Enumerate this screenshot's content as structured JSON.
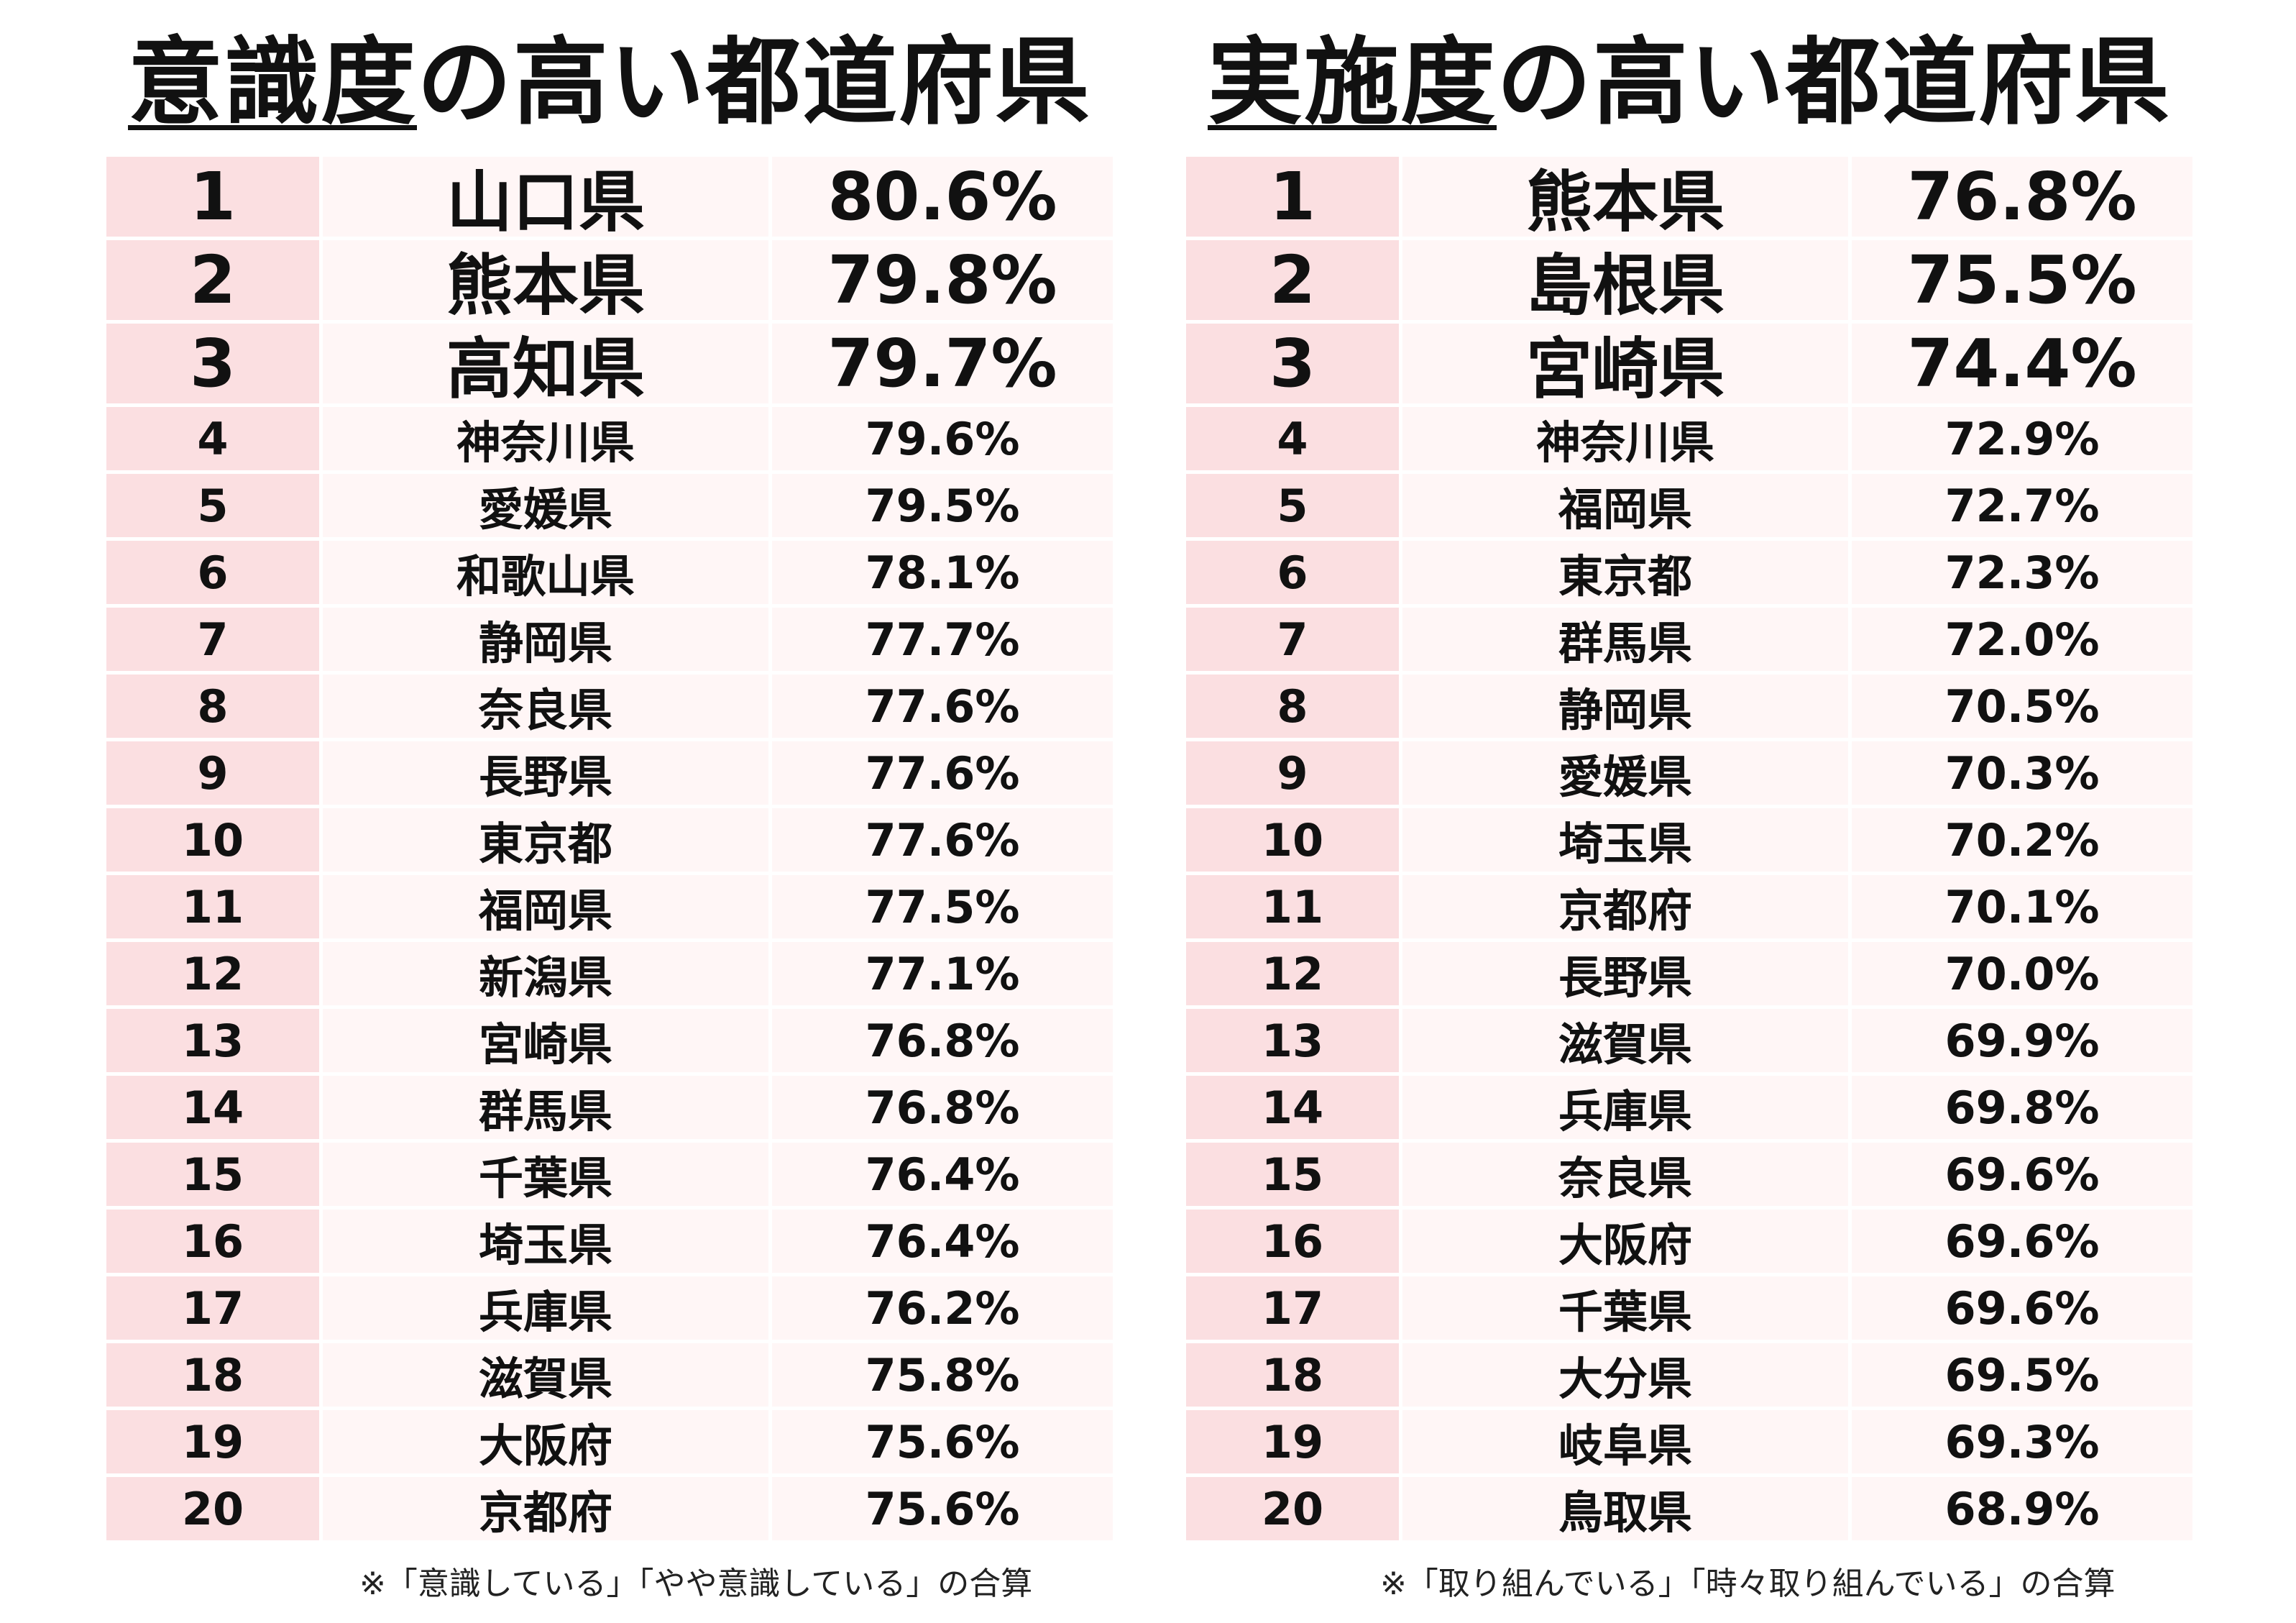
{
  "left": {
    "title_underlined": "意識度",
    "title_rest": "の高い都道府県",
    "rows": [
      {
        "rank": "1",
        "pref": "山口県",
        "pct": "80.6%"
      },
      {
        "rank": "2",
        "pref": "熊本県",
        "pct": "79.8%"
      },
      {
        "rank": "3",
        "pref": "高知県",
        "pct": "79.7%"
      },
      {
        "rank": "4",
        "pref": "神奈川県",
        "pct": "79.6%"
      },
      {
        "rank": "5",
        "pref": "愛媛県",
        "pct": "79.5%"
      },
      {
        "rank": "6",
        "pref": "和歌山県",
        "pct": "78.1%"
      },
      {
        "rank": "7",
        "pref": "静岡県",
        "pct": "77.7%"
      },
      {
        "rank": "8",
        "pref": "奈良県",
        "pct": "77.6%"
      },
      {
        "rank": "9",
        "pref": "長野県",
        "pct": "77.6%"
      },
      {
        "rank": "10",
        "pref": "東京都",
        "pct": "77.6%"
      },
      {
        "rank": "11",
        "pref": "福岡県",
        "pct": "77.5%"
      },
      {
        "rank": "12",
        "pref": "新潟県",
        "pct": "77.1%"
      },
      {
        "rank": "13",
        "pref": "宮崎県",
        "pct": "76.8%"
      },
      {
        "rank": "14",
        "pref": "群馬県",
        "pct": "76.8%"
      },
      {
        "rank": "15",
        "pref": "千葉県",
        "pct": "76.4%"
      },
      {
        "rank": "16",
        "pref": "埼玉県",
        "pct": "76.4%"
      },
      {
        "rank": "17",
        "pref": "兵庫県",
        "pct": "76.2%"
      },
      {
        "rank": "18",
        "pref": "滋賀県",
        "pct": "75.8%"
      },
      {
        "rank": "19",
        "pref": "大阪府",
        "pct": "75.6%"
      },
      {
        "rank": "20",
        "pref": "京都府",
        "pct": "75.6%"
      }
    ],
    "note": "※「意識している」「やや意識している」の合算"
  },
  "right": {
    "title_underlined": "実施度",
    "title_rest": "の高い都道府県",
    "rows": [
      {
        "rank": "1",
        "pref": "熊本県",
        "pct": "76.8%"
      },
      {
        "rank": "2",
        "pref": "島根県",
        "pct": "75.5%"
      },
      {
        "rank": "3",
        "pref": "宮崎県",
        "pct": "74.4%"
      },
      {
        "rank": "4",
        "pref": "神奈川県",
        "pct": "72.9%"
      },
      {
        "rank": "5",
        "pref": "福岡県",
        "pct": "72.7%"
      },
      {
        "rank": "6",
        "pref": "東京都",
        "pct": "72.3%"
      },
      {
        "rank": "7",
        "pref": "群馬県",
        "pct": "72.0%"
      },
      {
        "rank": "8",
        "pref": "静岡県",
        "pct": "70.5%"
      },
      {
        "rank": "9",
        "pref": "愛媛県",
        "pct": "70.3%"
      },
      {
        "rank": "10",
        "pref": "埼玉県",
        "pct": "70.2%"
      },
      {
        "rank": "11",
        "pref": "京都府",
        "pct": "70.1%"
      },
      {
        "rank": "12",
        "pref": "長野県",
        "pct": "70.0%"
      },
      {
        "rank": "13",
        "pref": "滋賀県",
        "pct": "69.9%"
      },
      {
        "rank": "14",
        "pref": "兵庫県",
        "pct": "69.8%"
      },
      {
        "rank": "15",
        "pref": "奈良県",
        "pct": "69.6%"
      },
      {
        "rank": "16",
        "pref": "大阪府",
        "pct": "69.6%"
      },
      {
        "rank": "17",
        "pref": "千葉県",
        "pct": "69.6%"
      },
      {
        "rank": "18",
        "pref": "大分県",
        "pct": "69.5%"
      },
      {
        "rank": "19",
        "pref": "岐阜県",
        "pct": "69.3%"
      },
      {
        "rank": "20",
        "pref": "鳥取県",
        "pct": "68.9%"
      }
    ],
    "note": "※「取り組んでいる」「時々取り組んでいる」の合算"
  }
}
